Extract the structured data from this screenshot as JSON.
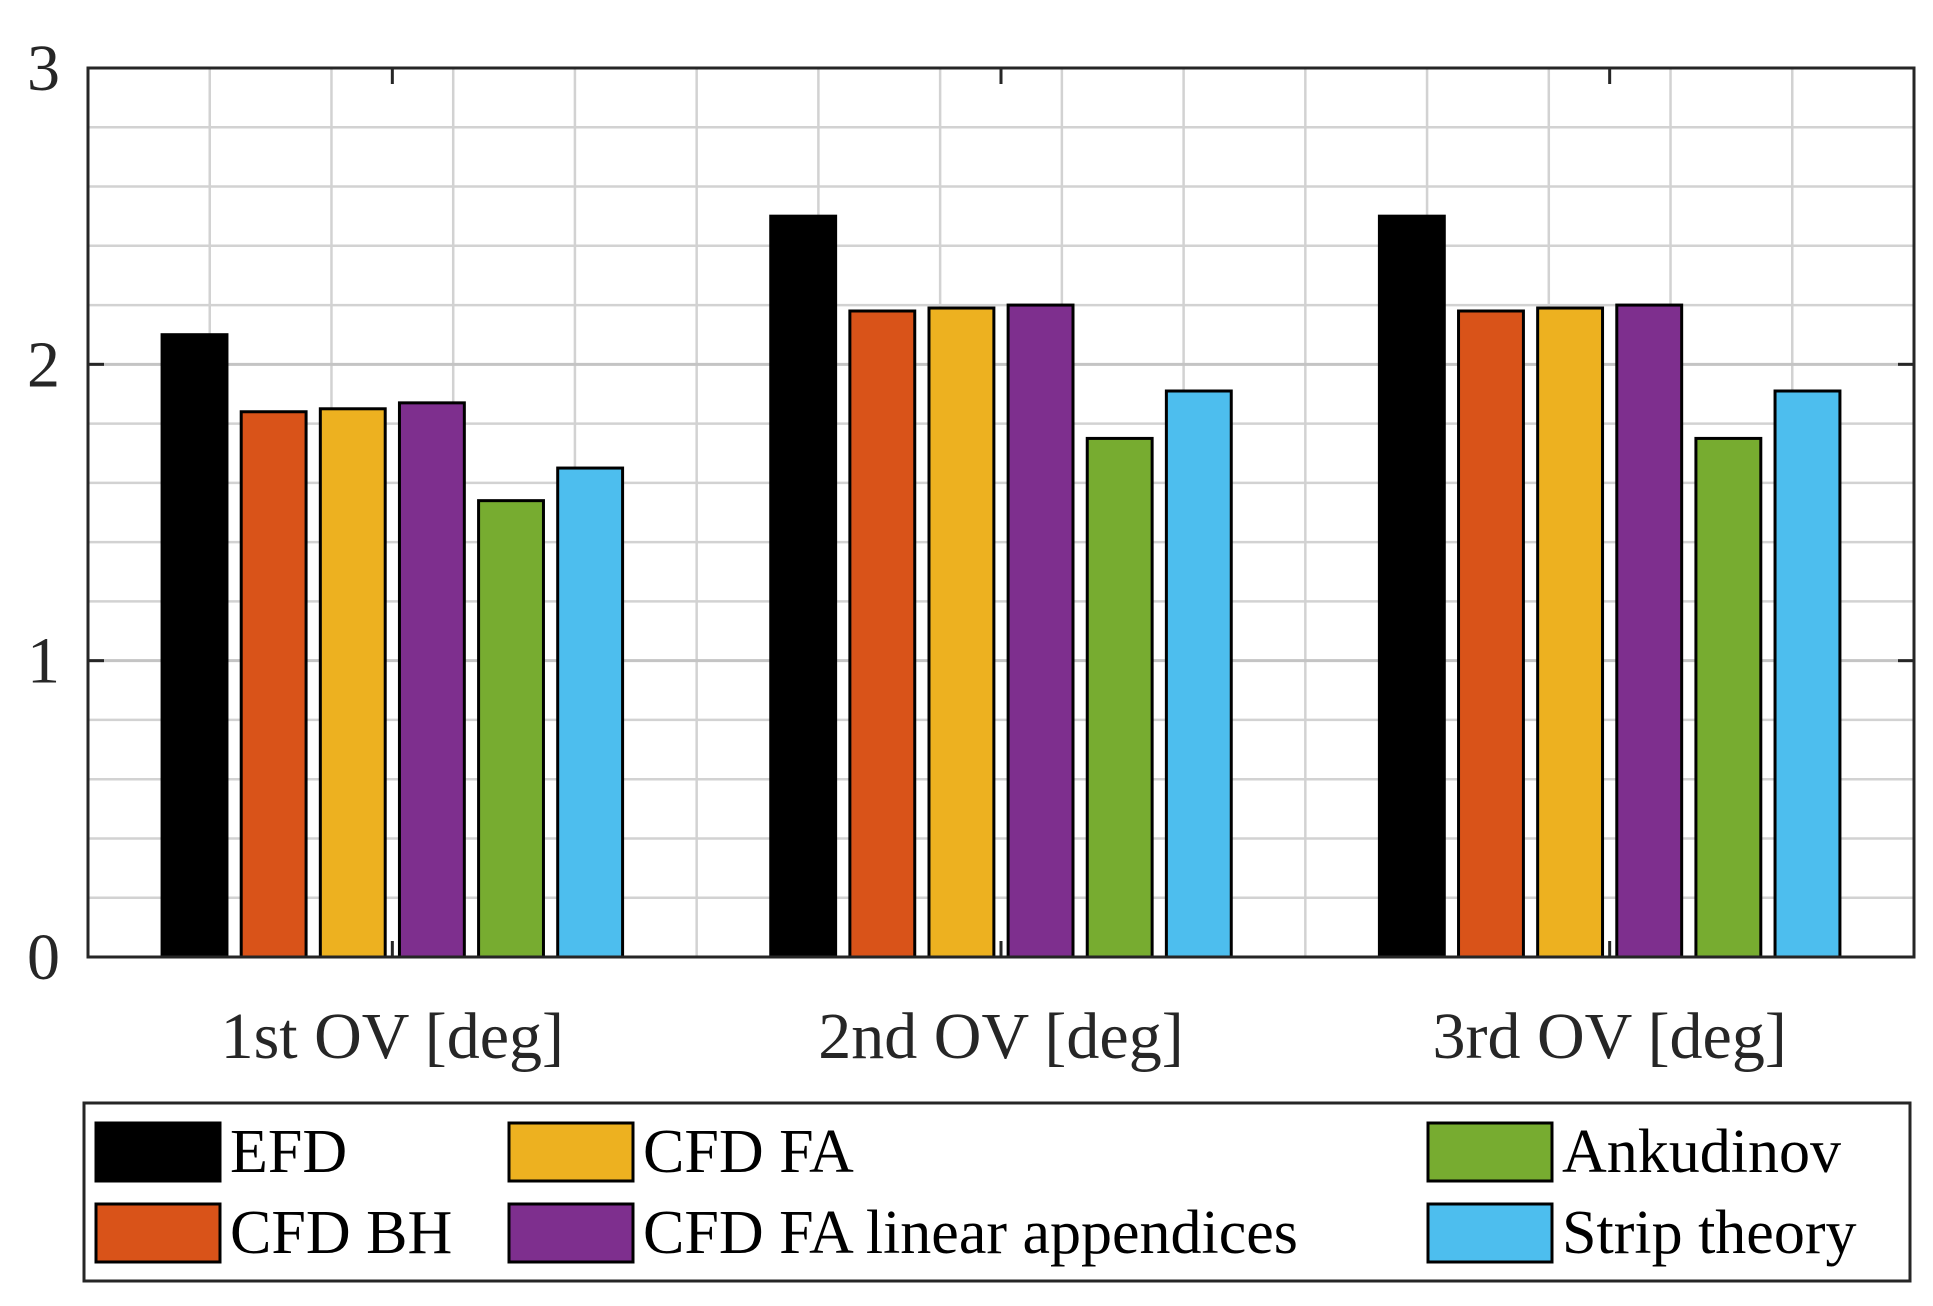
{
  "chart_data": {
    "type": "bar",
    "title": "",
    "xlabel": "",
    "ylabel": "",
    "ylim": [
      0,
      3
    ],
    "yticks": [
      0,
      1,
      2,
      3
    ],
    "grid": true,
    "minor_grid": true,
    "categories": [
      "1st OV [deg]",
      "2nd OV [deg]",
      "3rd OV [deg]"
    ],
    "series": [
      {
        "name": "EFD",
        "color": "#000000",
        "values": [
          2.1,
          2.5,
          2.5
        ]
      },
      {
        "name": "CFD BH",
        "color": "#D95319",
        "values": [
          1.84,
          2.18,
          2.18
        ]
      },
      {
        "name": "CFD FA",
        "color": "#EDB120",
        "values": [
          1.85,
          2.19,
          2.19
        ]
      },
      {
        "name": "CFD FA linear appendices",
        "color": "#7E2F8E",
        "values": [
          1.87,
          2.2,
          2.2
        ]
      },
      {
        "name": "Ankudinov",
        "color": "#77AC30",
        "values": [
          1.54,
          1.75,
          1.75
        ]
      },
      {
        "name": "Strip theory",
        "color": "#4DBEEE",
        "values": [
          1.65,
          1.91,
          1.91
        ]
      }
    ],
    "legend": {
      "placement": "bottom",
      "columns": [
        [
          "EFD",
          "CFD BH"
        ],
        [
          "CFD FA",
          "CFD FA linear appendices"
        ],
        [
          "Ankudinov",
          "Strip theory"
        ]
      ]
    }
  }
}
